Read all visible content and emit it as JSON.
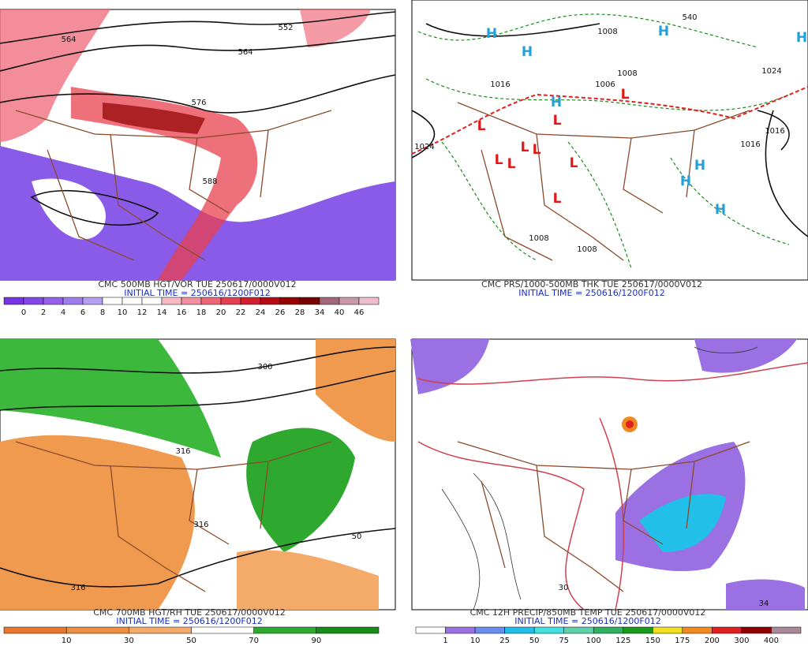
{
  "panels": [
    {
      "title": "CMC 500MB HGT/VOR TUE 250617/0000V012",
      "init": "INITIAL TIME = 250616/1200F012",
      "colorbar": {
        "labels": [
          0,
          2,
          4,
          6,
          8,
          10,
          12,
          14,
          16,
          18,
          20,
          22,
          24,
          26,
          28,
          34,
          40,
          46
        ],
        "colors": [
          "#7a32e6",
          "#8447ea",
          "#9460ec",
          "#a07cee",
          "#b49ff2",
          "#ffffff",
          "#ffffff",
          "#ffffff",
          "#f8b8c4",
          "#f38e9f",
          "#ee6677",
          "#e44050",
          "#d22030",
          "#b80a14",
          "#960000",
          "#7a0000",
          "#a06878",
          "#c898a8",
          "#eebccc"
        ]
      },
      "labels": [
        "564",
        "552",
        "564",
        "576",
        "588"
      ]
    },
    {
      "title": "CMC PRS/1000-500MB THK TUE 250617/0000V012",
      "init": "INITIAL TIME = 250616/1200F012",
      "labels": [
        "1008",
        "1006",
        "1008",
        "1024",
        "1016",
        "1016",
        "1024",
        "1016",
        "1008",
        "1008",
        "540"
      ],
      "highs": [
        "H",
        "H",
        "H",
        "H",
        "H",
        "H",
        "H",
        "H"
      ],
      "lows": [
        "L",
        "L",
        "L",
        "L",
        "L",
        "L",
        "L",
        "L",
        "L"
      ]
    },
    {
      "title": "CMC 700MB HGT/RH TUE 250617/0000V012",
      "init": "INITIAL TIME = 250616/1200F012",
      "colorbar": {
        "labels": [
          10,
          30,
          50,
          70,
          90
        ],
        "colors": [
          "#e8782e",
          "#ee9044",
          "#f4ab6a",
          "#ffffff",
          "#2fa82f",
          "#178a17"
        ]
      },
      "labels": [
        "316",
        "316",
        "316",
        "300",
        "50"
      ]
    },
    {
      "title": "CMC 12H PRECIP/850MB TEMP TUE 250617/0000V012",
      "init": "INITIAL TIME = 250616/1200F012",
      "colorbar": {
        "labels": [
          1,
          10,
          25,
          50,
          75,
          100,
          125,
          150,
          175,
          200,
          300,
          400
        ],
        "colors": [
          "#ffffff",
          "#9a70e2",
          "#6a8ef0",
          "#22bfe8",
          "#44e0e0",
          "#60d0a8",
          "#30b060",
          "#1a9a1a",
          "#f0e020",
          "#f08a20",
          "#e02020",
          "#900000",
          "#a88898"
        ]
      },
      "labels": [
        "30",
        "34"
      ]
    }
  ]
}
